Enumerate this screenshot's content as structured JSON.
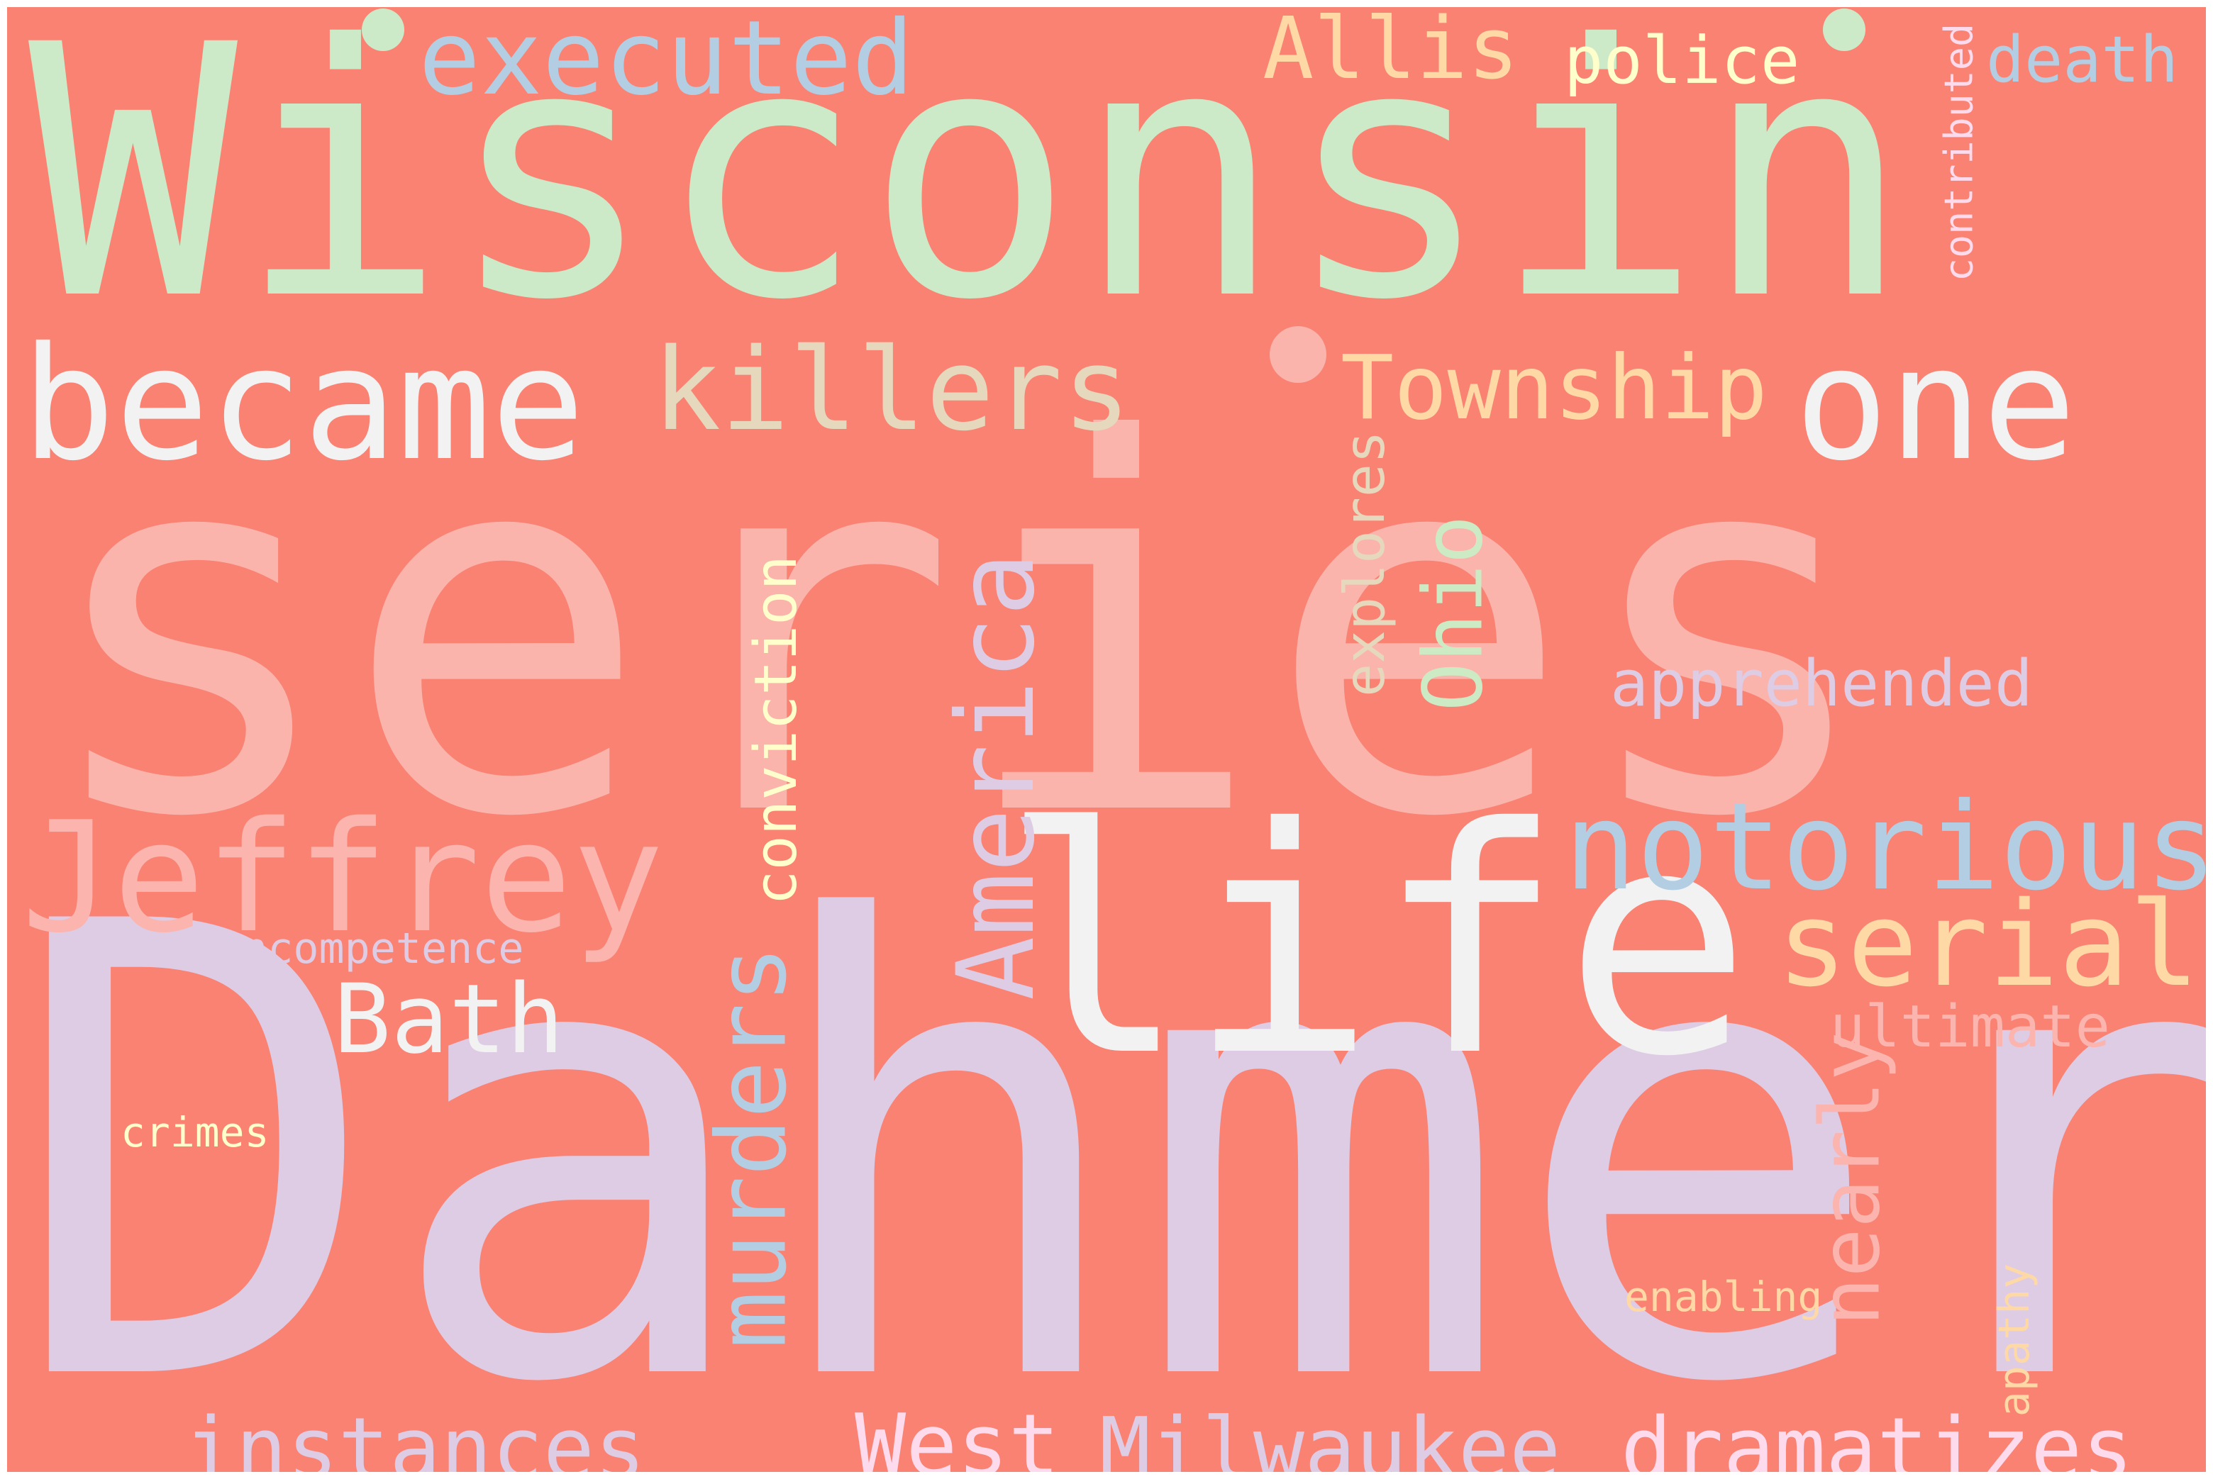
{
  "background_color": "#f98273",
  "words": {
    "wisconsin": {
      "text": "Wisconsin",
      "color": "#cdeac8"
    },
    "series": {
      "text": "series",
      "color": "#fbb4ac"
    },
    "dahmer": {
      "text": "Dahmer",
      "color": "#decbe4"
    },
    "life": {
      "text": "life",
      "color": "#f2f2f2"
    },
    "became": {
      "text": "became",
      "color": "#f2f2f2"
    },
    "killers": {
      "text": "killers",
      "color": "#e5d8bd"
    },
    "one": {
      "text": "one",
      "color": "#f2f2f2"
    },
    "township": {
      "text": "Township",
      "color": "#fed9a6"
    },
    "executed": {
      "text": "executed",
      "color": "#b3cde3"
    },
    "allis": {
      "text": "Allis",
      "color": "#fed9a6"
    },
    "police": {
      "text": "police",
      "color": "#ffffcc"
    },
    "death": {
      "text": "death",
      "color": "#b3cde3"
    },
    "contributed": {
      "text": "contributed",
      "color": "#fddaec"
    },
    "jeffrey": {
      "text": "Jeffrey",
      "color": "#fbb4ae"
    },
    "america": {
      "text": "America",
      "color": "#decbe4"
    },
    "murders": {
      "text": "murders",
      "color": "#b3cde3"
    },
    "conviction": {
      "text": "conviction",
      "color": "#ffffcc"
    },
    "explores": {
      "text": "explores",
      "color": "#e5d8bd"
    },
    "ohio": {
      "text": "Ohio",
      "color": "#ccebc5"
    },
    "notorious": {
      "text": "notorious",
      "color": "#b3cde3"
    },
    "serial": {
      "text": "serial",
      "color": "#fed9a6"
    },
    "apprehended": {
      "text": "apprehended",
      "color": "#decbe4"
    },
    "ultimate": {
      "text": "ultimate",
      "color": "#fbb4ae"
    },
    "nearly": {
      "text": "nearly",
      "color": "#fbb4ae"
    },
    "incompetence": {
      "text": "incompetence",
      "color": "#decbe4"
    },
    "bath": {
      "text": "Bath",
      "color": "#f2f2f2"
    },
    "crimes": {
      "text": "crimes",
      "color": "#ffffcc"
    },
    "enabling": {
      "text": "enabling",
      "color": "#fed9a6"
    },
    "apathy": {
      "text": "apathy",
      "color": "#fed9a6"
    },
    "instances": {
      "text": "instances",
      "color": "#decbe4"
    },
    "west": {
      "text": "West",
      "color": "#fddaec"
    },
    "milwaukee": {
      "text": "Milwaukee",
      "color": "#decbe4"
    },
    "dramatizes": {
      "text": "dramatizes",
      "color": "#fddaec"
    }
  },
  "dot_colors": {
    "dot_1": "#cdeac8",
    "dot_2": "#cdeac8",
    "dot_3": "#fbb4ac"
  }
}
